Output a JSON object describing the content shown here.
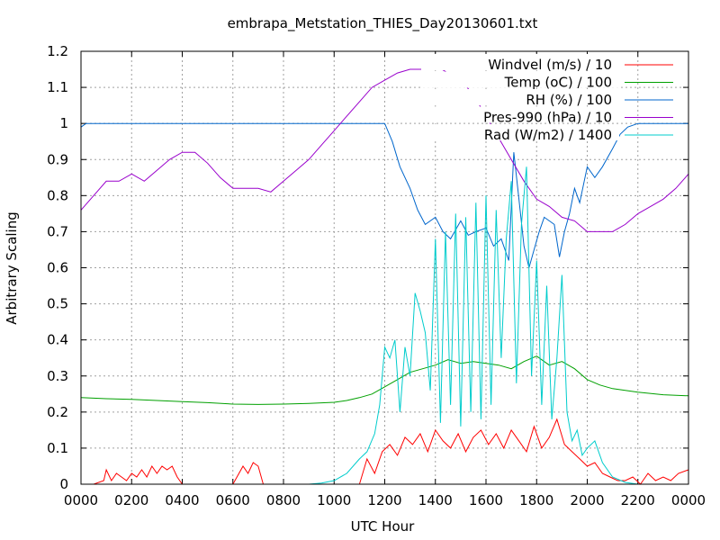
{
  "chart_data": {
    "type": "line",
    "title": "embrapa_Metstation_THIES_Day20130601.txt",
    "xlabel": "UTC Hour",
    "ylabel": "Arbitrary Scaling",
    "xlim": [
      0,
      24
    ],
    "ylim": [
      0,
      1.2
    ],
    "grid": true,
    "legend_position": "top-right",
    "x_tick_labels": [
      "0000",
      "0200",
      "0400",
      "0600",
      "0800",
      "1000",
      "1200",
      "1400",
      "1600",
      "1800",
      "2000",
      "2200",
      "0000"
    ],
    "y_tick_labels": [
      "0",
      "0.1",
      "0.2",
      "0.3",
      "0.4",
      "0.5",
      "0.6",
      "0.7",
      "0.8",
      "0.9",
      "1",
      "1.1",
      "1.2"
    ],
    "series": [
      {
        "name": "Windvel (m/s) / 10",
        "color": "#ff0000",
        "x": [
          0,
          0.5,
          0.9,
          1.0,
          1.2,
          1.4,
          1.6,
          1.8,
          2.0,
          2.2,
          2.4,
          2.6,
          2.8,
          3.0,
          3.2,
          3.4,
          3.6,
          3.8,
          4.0,
          4.2,
          4.4,
          4.6,
          4.8,
          5.0,
          5.5,
          6.0,
          6.4,
          6.6,
          6.8,
          7.0,
          7.2,
          7.4,
          7.6,
          8.0,
          8.5,
          9.0,
          9.5,
          10.0,
          10.5,
          11.0,
          11.3,
          11.6,
          11.9,
          12.2,
          12.5,
          12.8,
          13.1,
          13.4,
          13.7,
          14.0,
          14.3,
          14.6,
          14.9,
          15.2,
          15.5,
          15.8,
          16.1,
          16.4,
          16.7,
          17.0,
          17.3,
          17.6,
          17.9,
          18.2,
          18.5,
          18.8,
          19.1,
          19.4,
          19.7,
          20.0,
          20.3,
          20.6,
          20.9,
          21.2,
          21.5,
          21.8,
          22.1,
          22.4,
          22.7,
          23.0,
          23.3,
          23.6,
          24.0
        ],
        "values": [
          0,
          0,
          0.01,
          0.04,
          0.01,
          0.03,
          0.02,
          0.01,
          0.03,
          0.02,
          0.04,
          0.02,
          0.05,
          0.03,
          0.05,
          0.04,
          0.05,
          0.02,
          0,
          0,
          0,
          0,
          0,
          0,
          0,
          0,
          0.05,
          0.03,
          0.06,
          0.05,
          0,
          0,
          0,
          0,
          0,
          0,
          0,
          0,
          0,
          0,
          0.07,
          0.03,
          0.09,
          0.11,
          0.08,
          0.13,
          0.11,
          0.14,
          0.09,
          0.15,
          0.12,
          0.1,
          0.14,
          0.09,
          0.13,
          0.15,
          0.11,
          0.14,
          0.1,
          0.15,
          0.12,
          0.09,
          0.16,
          0.1,
          0.13,
          0.18,
          0.11,
          0.09,
          0.07,
          0.05,
          0.06,
          0.03,
          0.02,
          0.01,
          0.01,
          0.02,
          0,
          0.03,
          0.01,
          0.02,
          0.01,
          0.03,
          0.04
        ]
      },
      {
        "name": "Temp (oC) / 100",
        "color": "#00a000",
        "x": [
          0,
          1,
          2,
          3,
          4,
          5,
          6,
          7,
          8,
          9,
          10,
          10.5,
          11,
          11.5,
          12,
          12.5,
          13,
          13.5,
          14,
          14.5,
          15,
          15.5,
          16,
          16.5,
          17,
          17.5,
          18,
          18.5,
          19,
          19.5,
          20,
          20.5,
          21,
          22,
          23,
          24
        ],
        "values": [
          0.24,
          0.237,
          0.235,
          0.232,
          0.229,
          0.226,
          0.222,
          0.221,
          0.222,
          0.224,
          0.227,
          0.232,
          0.24,
          0.25,
          0.27,
          0.29,
          0.31,
          0.32,
          0.33,
          0.345,
          0.335,
          0.34,
          0.335,
          0.33,
          0.32,
          0.34,
          0.355,
          0.33,
          0.34,
          0.32,
          0.29,
          0.275,
          0.265,
          0.255,
          0.248,
          0.245
        ]
      },
      {
        "name": "RH (%) / 100",
        "color": "#0066cc",
        "x": [
          0,
          0.2,
          2,
          4,
          6,
          8,
          10,
          11,
          12,
          12.3,
          12.6,
          13,
          13.3,
          13.6,
          14,
          14.3,
          14.6,
          15,
          15.3,
          15.6,
          16,
          16.3,
          16.6,
          16.9,
          17.1,
          17.3,
          17.5,
          17.7,
          17.9,
          18.1,
          18.3,
          18.5,
          18.7,
          18.9,
          19.1,
          19.3,
          19.5,
          19.7,
          20,
          20.3,
          20.6,
          21,
          21.3,
          21.6,
          22,
          23,
          24
        ],
        "values": [
          0.99,
          1.0,
          1.0,
          1.0,
          1.0,
          1.0,
          1.0,
          1.0,
          1.0,
          0.95,
          0.88,
          0.82,
          0.76,
          0.72,
          0.74,
          0.7,
          0.68,
          0.73,
          0.69,
          0.7,
          0.71,
          0.66,
          0.68,
          0.62,
          0.92,
          0.79,
          0.66,
          0.6,
          0.65,
          0.7,
          0.74,
          0.73,
          0.72,
          0.63,
          0.7,
          0.75,
          0.82,
          0.78,
          0.88,
          0.85,
          0.88,
          0.93,
          0.97,
          0.99,
          1.0,
          1.0,
          1.0
        ]
      },
      {
        "name": "Pres-990 (hPa) / 10",
        "color": "#9900cc",
        "x": [
          0,
          0.5,
          1,
          1.5,
          2,
          2.5,
          3,
          3.5,
          4,
          4.5,
          5,
          5.5,
          6,
          6.5,
          7,
          7.5,
          8,
          8.5,
          9,
          9.5,
          10,
          10.5,
          11,
          11.5,
          12,
          12.5,
          13,
          13.5,
          14,
          14.5,
          15,
          15.5,
          16,
          16.5,
          17,
          17.5,
          18,
          18.5,
          19,
          19.5,
          20,
          20.5,
          21,
          21.5,
          22,
          22.5,
          23,
          23.5,
          24
        ],
        "values": [
          0.76,
          0.8,
          0.84,
          0.84,
          0.86,
          0.84,
          0.87,
          0.9,
          0.92,
          0.92,
          0.89,
          0.85,
          0.82,
          0.82,
          0.82,
          0.81,
          0.84,
          0.87,
          0.9,
          0.94,
          0.98,
          1.02,
          1.06,
          1.1,
          1.12,
          1.14,
          1.15,
          1.15,
          1.16,
          1.14,
          1.12,
          1.08,
          1.02,
          0.96,
          0.9,
          0.84,
          0.79,
          0.77,
          0.74,
          0.73,
          0.7,
          0.7,
          0.7,
          0.72,
          0.75,
          0.77,
          0.79,
          0.82,
          0.86
        ]
      },
      {
        "name": "Rad (W/m2) / 1400",
        "color": "#00cccc",
        "x": [
          0,
          9,
          9.5,
          10,
          10.5,
          11,
          11.3,
          11.6,
          11.8,
          12.0,
          12.2,
          12.4,
          12.6,
          12.8,
          13.0,
          13.2,
          13.4,
          13.6,
          13.8,
          14.0,
          14.2,
          14.4,
          14.6,
          14.8,
          15.0,
          15.2,
          15.4,
          15.6,
          15.8,
          16.0,
          16.2,
          16.4,
          16.6,
          16.8,
          17.0,
          17.2,
          17.4,
          17.6,
          17.8,
          18.0,
          18.2,
          18.4,
          18.6,
          18.8,
          19.0,
          19.2,
          19.4,
          19.6,
          19.8,
          20.0,
          20.3,
          20.6,
          21.0,
          21.5,
          22,
          24
        ],
        "values": [
          0,
          0,
          0.003,
          0.01,
          0.03,
          0.07,
          0.09,
          0.14,
          0.22,
          0.38,
          0.35,
          0.4,
          0.2,
          0.38,
          0.3,
          0.53,
          0.48,
          0.42,
          0.26,
          0.68,
          0.17,
          0.7,
          0.22,
          0.75,
          0.16,
          0.74,
          0.2,
          0.78,
          0.18,
          0.8,
          0.22,
          0.76,
          0.35,
          0.68,
          0.84,
          0.28,
          0.72,
          0.88,
          0.3,
          0.62,
          0.22,
          0.55,
          0.18,
          0.35,
          0.58,
          0.2,
          0.12,
          0.15,
          0.08,
          0.1,
          0.12,
          0.06,
          0.02,
          0.005,
          0,
          0
        ]
      }
    ]
  }
}
